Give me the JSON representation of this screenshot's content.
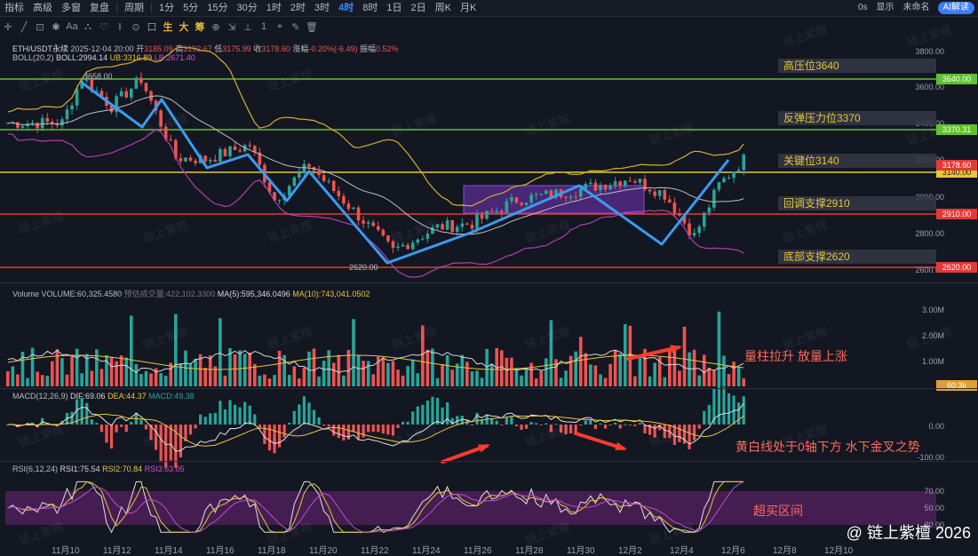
{
  "toolbar": {
    "items": [
      "指标",
      "高级",
      "多窗",
      "复盘",
      "周期",
      "1分",
      "5分",
      "15分",
      "30分",
      "1时",
      "2时",
      "3时",
      "4时",
      "8时",
      "1日",
      "2日",
      "周K",
      "月K"
    ],
    "active": "4时",
    "right": {
      "latency": "0s",
      "display": "显示",
      "layout": "未命名",
      "ai": "AI解读"
    }
  },
  "drawtools": [
    "✛",
    "╱",
    "⊡",
    "✱",
    "Aa",
    "⛬",
    "♡",
    "Ⅰ",
    "⊙",
    "口",
    "生",
    "大",
    "筹",
    "⊕",
    "⇲",
    "⊥",
    "1",
    "⌖",
    "✎",
    "🗑"
  ],
  "legend": {
    "pair": "ETH/USDT永续",
    "datetime": "2025-12-04 20:00",
    "open_label": "开",
    "open": "3185.09",
    "high_label": "高",
    "high": "3192.67",
    "low_label": "低",
    "low": "3175.99",
    "close_label": "收",
    "close": "3178.60",
    "chg_label": "涨幅",
    "chg": "-0.20%(-6.49)",
    "amp_label": "振幅",
    "amp": "0.52%",
    "boll_name": "BOLL(20,2)",
    "boll_mid": "BOLL:2994.14",
    "boll_ub": "UB:3316.89",
    "boll_lb": "LB:2671.40"
  },
  "price_axis": [
    "3800.00",
    "3600.00",
    "3400.00",
    "3200.00",
    "3000.00",
    "2800.00",
    "2600.00"
  ],
  "levels": [
    {
      "label": "高压位3640",
      "tag": "3640.00",
      "color": "#5ec22c"
    },
    {
      "label": "反弹压力位3370",
      "tag": "3370.31",
      "color": "#5ec22c"
    },
    {
      "label": "关键位3140",
      "tag": "3140.00",
      "color": "#e8c53a"
    },
    {
      "label": "回调支撑2910",
      "tag": "2910.00",
      "color": "#e53935"
    },
    {
      "label": "底部支撑2620",
      "tag": "2620.00",
      "color": "#e53935"
    }
  ],
  "last_price_tag": "3178.60",
  "swing_high": "3658.00",
  "swing_low": "2620.00",
  "volume": {
    "legend": "Volume",
    "vol": "VOLUME:60,325.4580",
    "est": "预估成交量:422,102.3300",
    "ma5": "MA(5):595,346.0496",
    "ma10": "MA(10):743,041.0502",
    "axis": [
      "3.00M",
      "2.00M",
      "1.00M"
    ],
    "tag": "60.3k"
  },
  "macd": {
    "legend": "MACD(12,26,9)",
    "dif": "DIF:69.06",
    "dea": "DEA:44.37",
    "macd": "MACD:49.38",
    "axis": [
      "0.00",
      "-100.00"
    ]
  },
  "rsi": {
    "legend": "RSI(6,12,24)",
    "rsi1": "RSI1:75.54",
    "rsi2": "RSI2:70.84",
    "rsi3": "RSI3:63.05",
    "axis": [
      "70.00",
      "50.00",
      "30.00"
    ]
  },
  "notes": {
    "volume": "量柱拉升 放量上涨",
    "macd": "黄白线处于0轴下方 水下金叉之势",
    "rsi": "超买区间"
  },
  "dates": [
    "11月10",
    "11月12",
    "11月14",
    "11月16",
    "11月18",
    "11月20",
    "11月22",
    "11月24",
    "11月26",
    "11月28",
    "11月30",
    "12月2",
    "12月4",
    "12月6",
    "12月8",
    "12月10"
  ],
  "watermark": "链上紫檀",
  "credit": "@ 链上紫檀 2026"
}
